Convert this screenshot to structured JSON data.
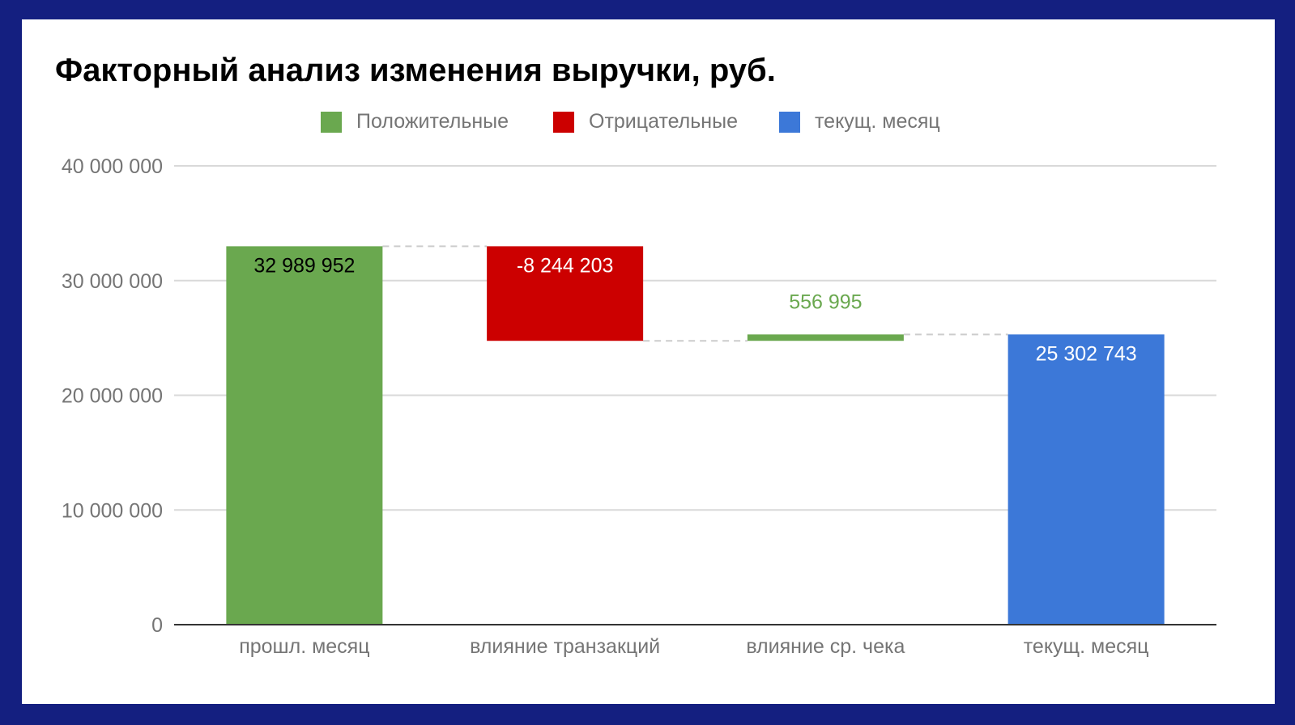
{
  "chart_data": {
    "type": "waterfall",
    "title": "Факторный анализ изменения выручки, руб.",
    "legend": {
      "placement": "top-center",
      "items": [
        {
          "label": "Положительные",
          "color": "#6aa84f"
        },
        {
          "label": "Отрицательные",
          "color": "#cc0000"
        },
        {
          "label": "текущ. месяц",
          "color": "#3c78d8"
        }
      ]
    },
    "categories": [
      "прошл. месяц",
      "влияние транзакций",
      "влияние ср. чека",
      "текущ. месяц"
    ],
    "values": [
      32989952,
      -8244203,
      556995,
      25302743
    ],
    "labels": [
      "32 989 952",
      "-8 244 203",
      "556 995",
      "25 302 743"
    ],
    "kinds": [
      "positive",
      "negative",
      "positive",
      "total"
    ],
    "ylim": [
      0,
      40000000
    ],
    "yticks": [
      0,
      10000000,
      20000000,
      30000000,
      40000000
    ],
    "ytick_labels": [
      "0",
      "10 000 000",
      "20 000 000",
      "30 000 000",
      "40 000 000"
    ],
    "grid": true,
    "connectors": true
  },
  "colors": {
    "positive": "#6aa84f",
    "negative": "#cc0000",
    "total": "#3c78d8",
    "frame": "#141f80"
  }
}
